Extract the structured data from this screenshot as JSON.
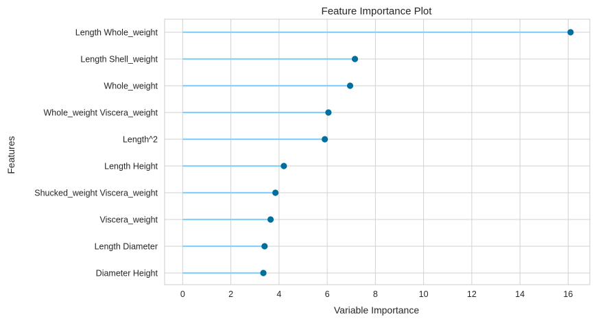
{
  "chart_data": {
    "type": "lollipop",
    "title": "Feature Importance Plot",
    "xlabel": "Variable Importance",
    "ylabel": "Features",
    "xlim": [
      -0.75,
      16.9
    ],
    "xticks": [
      0,
      2,
      4,
      6,
      8,
      10,
      12,
      14,
      16
    ],
    "grid": true,
    "colors": {
      "stem": "#87cefa",
      "marker": "#006f9e",
      "grid": "#d2d2d2",
      "frame": "#cccccc"
    },
    "categories": [
      "Length Whole_weight",
      "Length Shell_weight",
      "Whole_weight",
      "Whole_weight Viscera_weight",
      "Length^2",
      "Length Height",
      "Shucked_weight Viscera_weight",
      "Viscera_weight",
      "Length Diameter",
      "Diameter Height"
    ],
    "values": [
      16.1,
      7.15,
      6.95,
      6.05,
      5.9,
      4.2,
      3.85,
      3.65,
      3.4,
      3.35
    ]
  }
}
